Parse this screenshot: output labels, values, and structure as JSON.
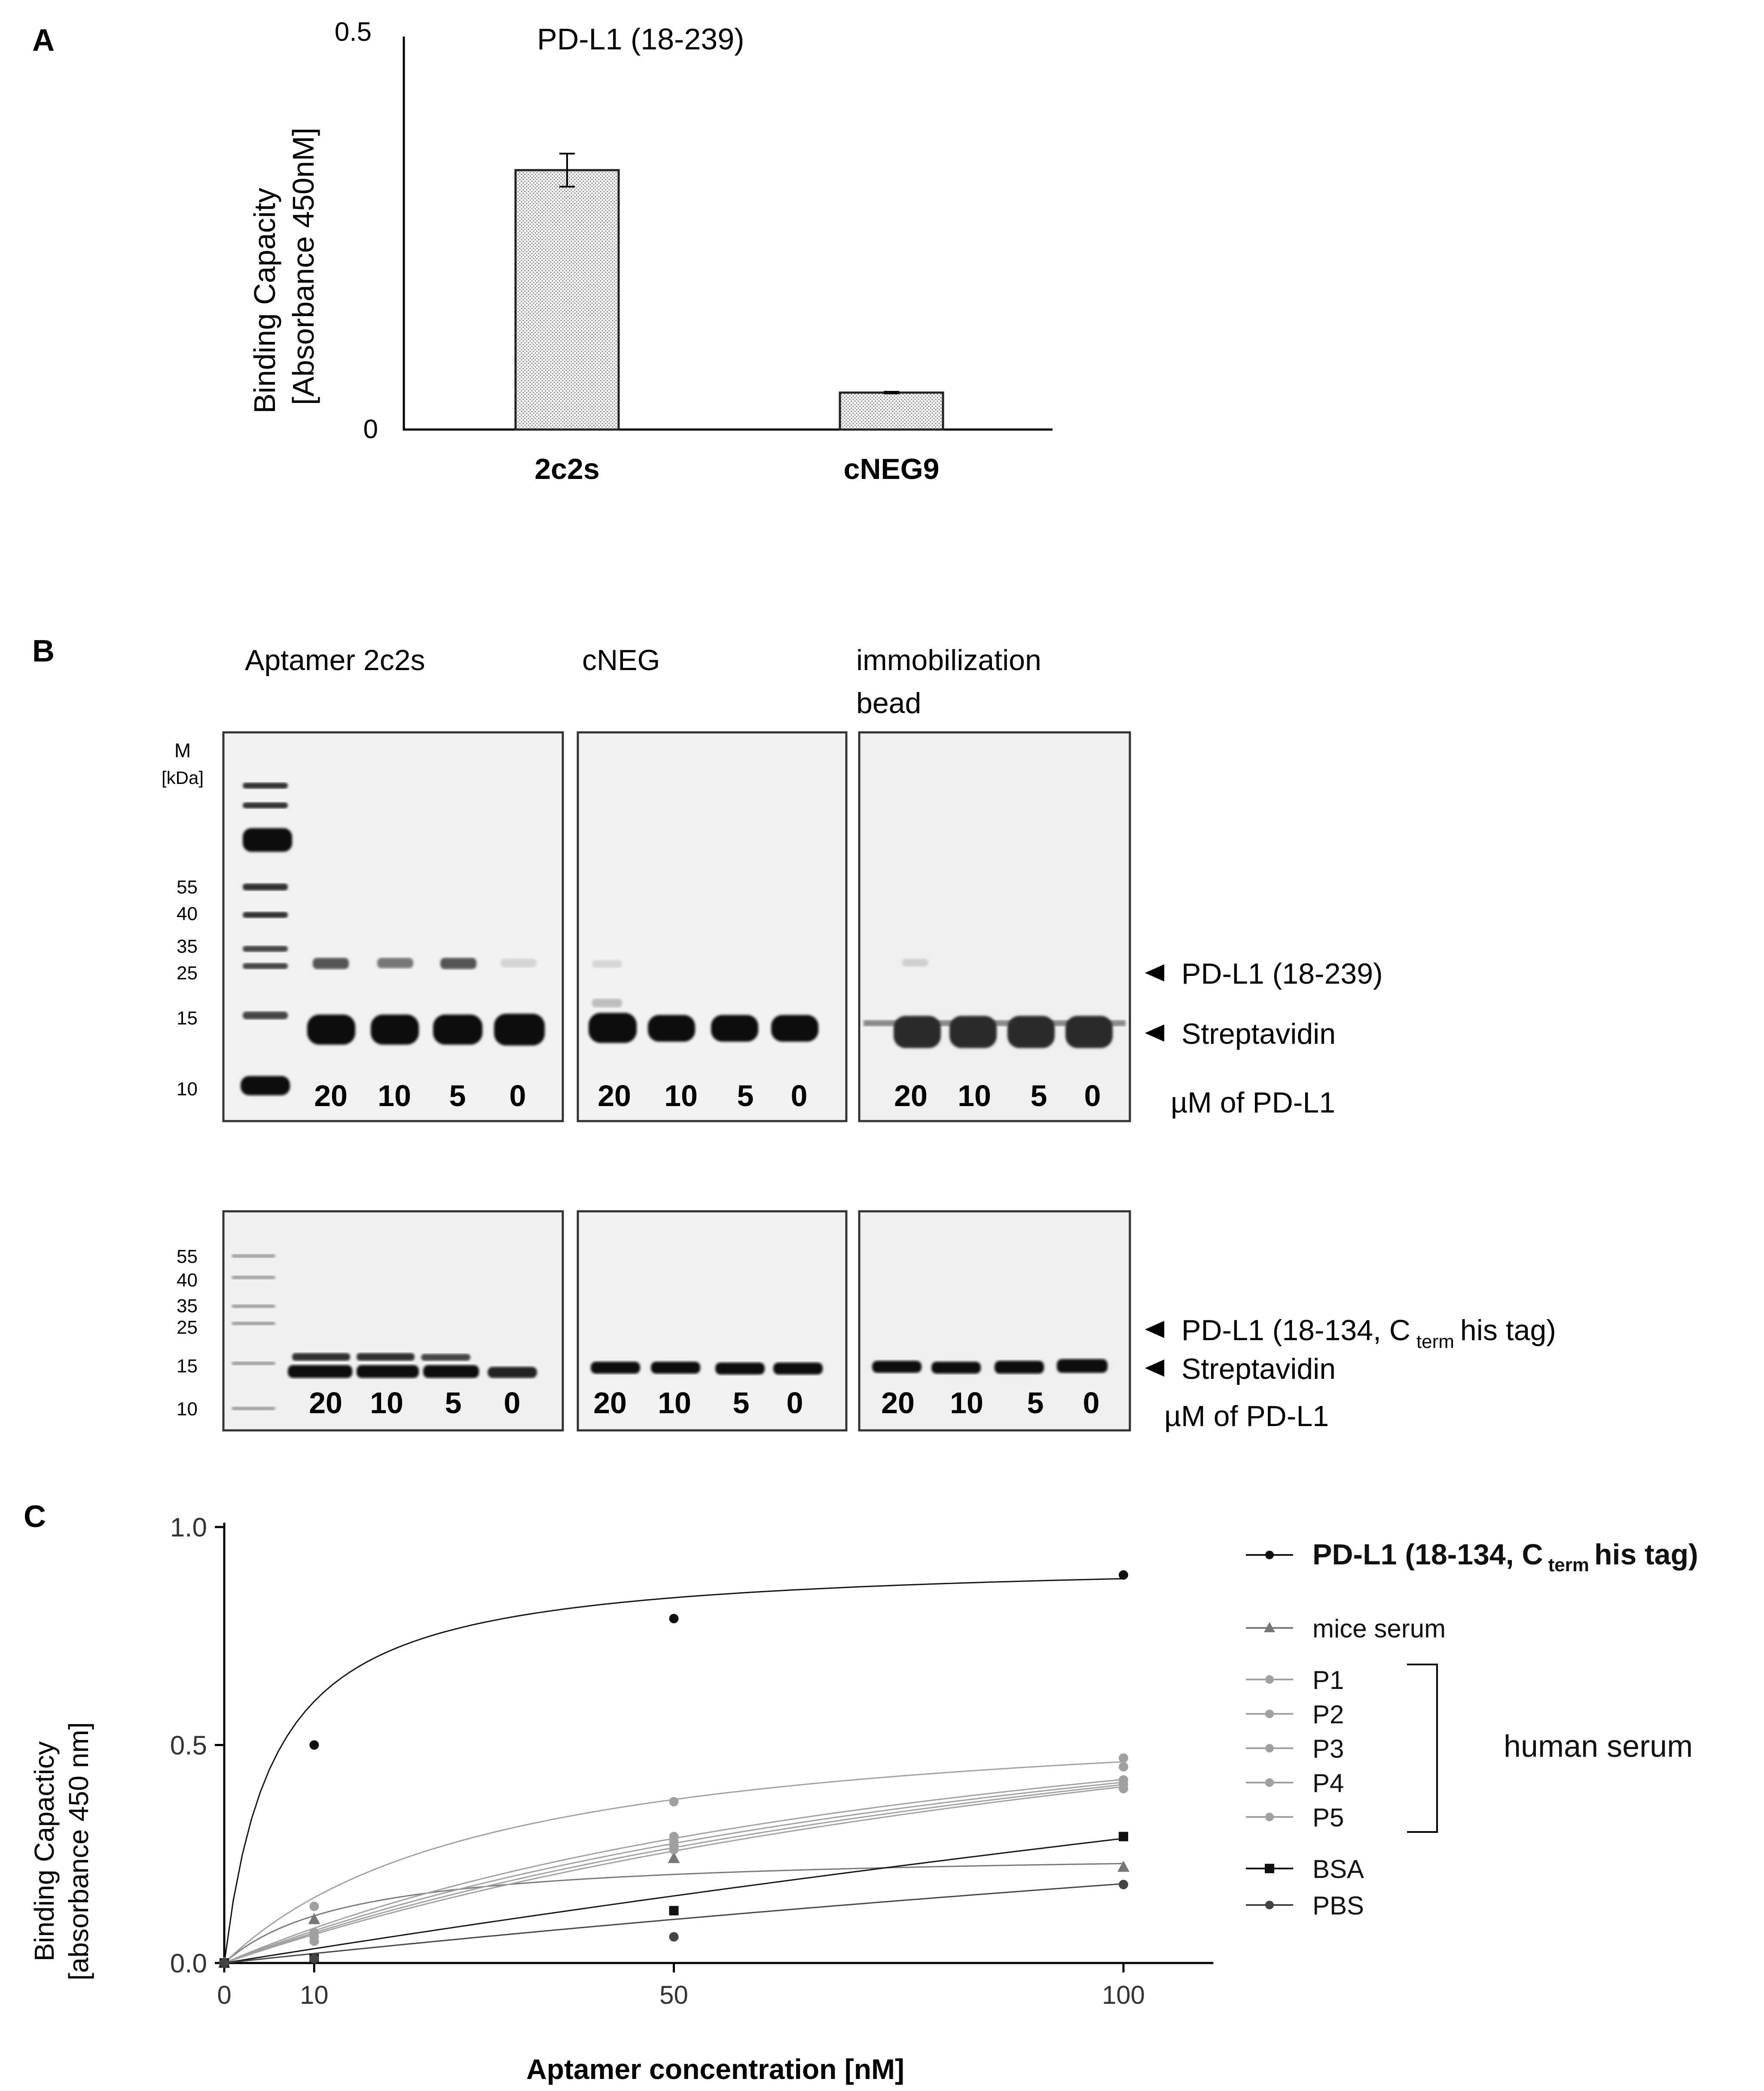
{
  "panel_labels": {
    "a": "A",
    "b": "B",
    "c": "C"
  },
  "colors": {
    "text": "#000000",
    "axis": "#000000",
    "bar_fill_pattern": "#888888",
    "gel_background": "#f0f0f0",
    "band": "#111111",
    "series_black": "#111111",
    "series_gray": "#888888",
    "series_light": "#a6a6a6"
  },
  "panel_b": {
    "column_headers": [
      "Aptamer 2c2s",
      "cNEG",
      "immobilization",
      "bead"
    ],
    "marker_header": [
      "M",
      "[kDa]"
    ],
    "top_gel": {
      "marker_labels": [
        "55",
        "40",
        "35",
        "25",
        "15",
        "10"
      ],
      "lane_labels": [
        "20",
        "10",
        "5",
        "0"
      ],
      "arrow_labels": [
        "PD-L1 (18-239)",
        "Streptavidin"
      ],
      "unit_label": "µM of PD-L1"
    },
    "bottom_gel": {
      "marker_labels": [
        "55",
        "40",
        "35",
        "25",
        "15",
        "10"
      ],
      "lane_labels": [
        "20",
        "10",
        "5",
        "0"
      ],
      "arrow_labels": [
        "PD-L1 (18-134, C",
        "term",
        "his tag)",
        "Streptavidin"
      ],
      "unit_label": "µM of PD-L1"
    }
  },
  "chart_data": [
    {
      "panel": "A",
      "type": "bar",
      "title": "PD-L1 (18-239)",
      "categories": [
        "2c2s",
        "cNEG9"
      ],
      "values": [
        0.33,
        0.047
      ],
      "errors": [
        0.021,
        0.001
      ],
      "ylabel": [
        "Binding Capacity",
        "[Absorbance 450nM]"
      ],
      "xlabel": "",
      "ylim": [
        0,
        0.5
      ],
      "yticks": [
        "0",
        "0.5"
      ]
    },
    {
      "panel": "C",
      "type": "scatter",
      "xlabel": "Aptamer concentration [nM]",
      "ylabel": [
        "Binding Capacticy",
        "[absorbance 450 nm]"
      ],
      "xlim": [
        0,
        110
      ],
      "ylim": [
        0,
        1.0
      ],
      "xticks": [
        "0",
        "10",
        "50",
        "100"
      ],
      "yticks": [
        "0.0",
        "0.5",
        "1.0"
      ],
      "x": [
        0,
        10,
        50,
        100
      ],
      "series": [
        {
          "name": "PD-L1 (18-134, C",
          "sub": "term",
          "suffix": "his tag)",
          "group": "",
          "marker": "circle",
          "color": "#111111",
          "values": [
            0,
            0.5,
            0.79,
            0.89
          ],
          "bmax": 0.93,
          "kd": 5.5
        },
        {
          "name": "mice serum",
          "group": "",
          "marker": "triangle",
          "color": "#777777",
          "values": [
            0,
            0.1,
            0.24,
            0.22
          ],
          "bmax": 0.26,
          "kd": 14
        },
        {
          "name": "P1",
          "group": "human serum",
          "marker": "circle",
          "color": "#a0a0a0",
          "values": [
            0,
            0.13,
            0.37,
            0.47
          ],
          "bmax": 0.6,
          "kd": 30
        },
        {
          "name": "P2",
          "group": "human serum",
          "marker": "circle",
          "color": "#a0a0a0",
          "values": [
            0,
            0.07,
            0.29,
            0.45
          ],
          "bmax": 0.8,
          "kd": 90
        },
        {
          "name": "P3",
          "group": "human serum",
          "marker": "circle",
          "color": "#a0a0a0",
          "values": [
            0,
            0.06,
            0.28,
            0.42
          ],
          "bmax": 0.85,
          "kd": 105
        },
        {
          "name": "P4",
          "group": "human serum",
          "marker": "circle",
          "color": "#a0a0a0",
          "values": [
            0,
            0.05,
            0.27,
            0.41
          ],
          "bmax": 0.9,
          "kd": 120
        },
        {
          "name": "P5",
          "group": "human serum",
          "marker": "circle",
          "color": "#a0a0a0",
          "values": [
            0,
            0.05,
            0.26,
            0.4
          ],
          "bmax": 0.95,
          "kd": 135
        },
        {
          "name": "BSA",
          "group": "",
          "marker": "square",
          "color": "#111111",
          "values": [
            0,
            0.01,
            0.12,
            0.29
          ],
          "bmax": 2.0,
          "kd": 600
        },
        {
          "name": "PBS",
          "group": "",
          "marker": "circle",
          "color": "#444444",
          "values": [
            0,
            0.01,
            0.06,
            0.18
          ],
          "bmax": 1.0,
          "kd": 450
        }
      ],
      "bracket_label": "human serum"
    }
  ]
}
